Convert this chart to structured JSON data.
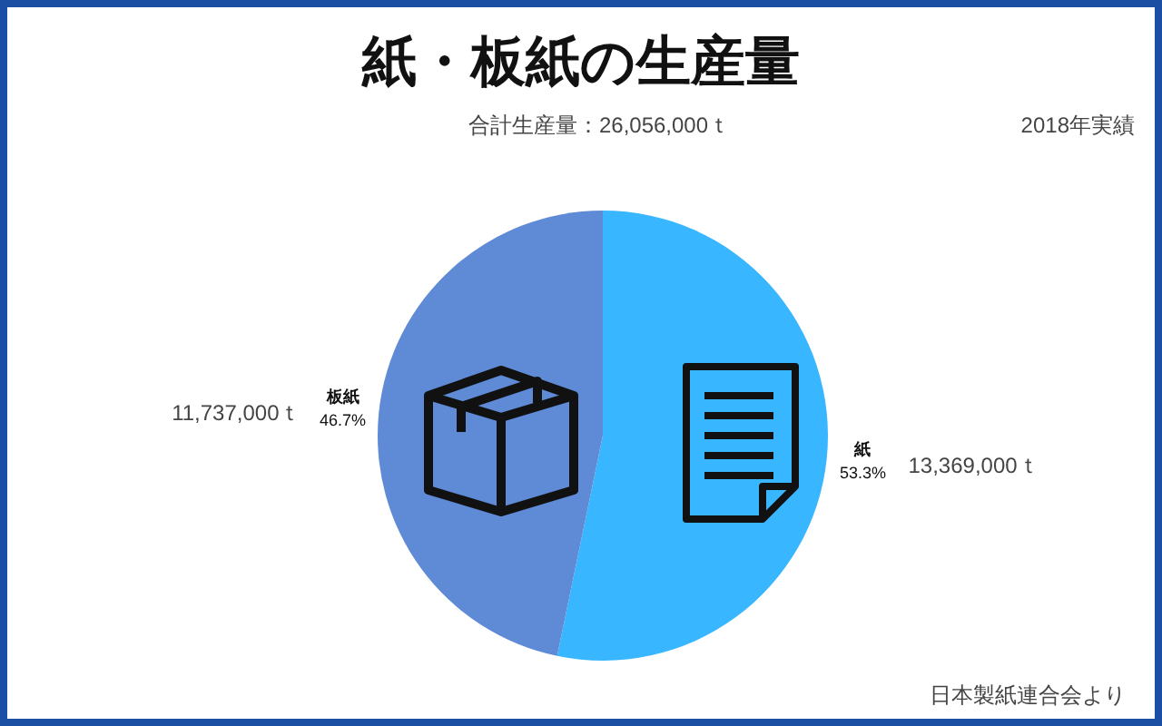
{
  "chart_data": {
    "type": "pie",
    "title": "紙・板紙の生産量",
    "subtitle": "合計生産量：26,056,000ｔ",
    "categories": [
      "紙",
      "板紙"
    ],
    "values": [
      13369000,
      11737000
    ],
    "value_labels": [
      "13,369,000ｔ",
      "11,737,000ｔ"
    ],
    "colors": [
      "#38b6ff",
      "#5e8ad6"
    ],
    "annotations": [
      "2018年実績",
      "53.3%",
      "46.7%",
      "日本製紙連合会より"
    ]
  }
}
